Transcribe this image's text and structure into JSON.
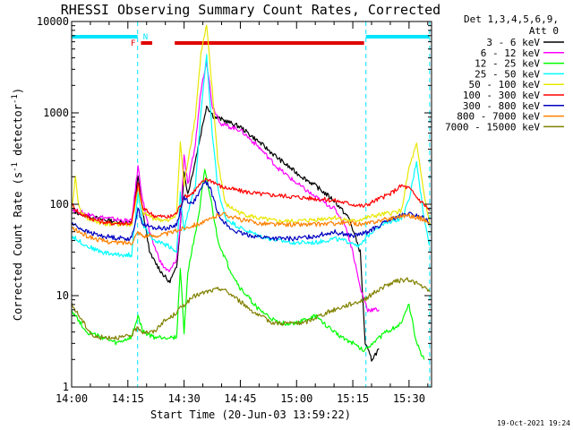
{
  "chart_data": {
    "type": "line",
    "title": "RHESSI Observing Summary Count Rates, Corrected",
    "xlabel": "Start Time (20-Jun-03 13:59:22)",
    "ylabel_parts": [
      "Corrected Count Rate (s",
      "-1",
      " detector",
      "-1",
      ")"
    ],
    "ylabel": "Corrected Count Rate (s-1 detector-1)",
    "y_scale": "log",
    "ylim": [
      1,
      10000
    ],
    "xlim_minutes": [
      0,
      96
    ],
    "x_ticks": [
      {
        "m": 0,
        "label": "14:00"
      },
      {
        "m": 15,
        "label": "14:15"
      },
      {
        "m": 30,
        "label": "14:30"
      },
      {
        "m": 45,
        "label": "14:45"
      },
      {
        "m": 60,
        "label": "15:00"
      },
      {
        "m": 75,
        "label": "15:15"
      },
      {
        "m": 90,
        "label": "15:30"
      }
    ],
    "y_ticks": [
      {
        "v": 1,
        "label": "1"
      },
      {
        "v": 10,
        "label": "10"
      },
      {
        "v": 100,
        "label": "100"
      },
      {
        "v": 1000,
        "label": "1000"
      },
      {
        "v": 10000,
        "label": "10000"
      }
    ],
    "legend_header": [
      "Det 1,3,4,5,6,9,",
      "Att 0"
    ],
    "legend_position": "right",
    "timestamp": "19-Oct-2021 19:24",
    "flags": {
      "F_label": "F",
      "N_label": "N",
      "night_color": "#00e5ff",
      "flare_color": "#e00000",
      "N_segments": [
        [
          0,
          17.6
        ],
        [
          78.5,
          95.5
        ]
      ],
      "F_segments": [
        [
          18.5,
          21.5
        ],
        [
          27.5,
          78.0
        ]
      ],
      "boundary_lines_m": [
        17.6,
        78.5,
        95.5
      ]
    },
    "series": [
      {
        "name": "3 - 6 keV",
        "color": "#000000",
        "points": [
          [
            0,
            85
          ],
          [
            4,
            75
          ],
          [
            8,
            68
          ],
          [
            12,
            65
          ],
          [
            16,
            62
          ],
          [
            17.7,
            200
          ],
          [
            19,
            80
          ],
          [
            21,
            28
          ],
          [
            24,
            18
          ],
          [
            26,
            14
          ],
          [
            28,
            20
          ],
          [
            29,
            60
          ],
          [
            30,
            220
          ],
          [
            31,
            130
          ],
          [
            33,
            300
          ],
          [
            34.5,
            600
          ],
          [
            36,
            1200
          ],
          [
            38,
            900
          ],
          [
            40,
            850
          ],
          [
            45,
            700
          ],
          [
            50,
            480
          ],
          [
            55,
            320
          ],
          [
            60,
            220
          ],
          [
            65,
            160
          ],
          [
            70,
            110
          ],
          [
            74,
            70
          ],
          [
            77,
            30
          ],
          [
            78.3,
            3
          ],
          [
            80,
            2
          ],
          [
            82,
            2.6
          ]
        ]
      },
      {
        "name": "6 - 12 keV",
        "color": "#ff00ff",
        "points": [
          [
            0,
            88
          ],
          [
            4,
            78
          ],
          [
            8,
            72
          ],
          [
            12,
            68
          ],
          [
            16,
            65
          ],
          [
            17.7,
            260
          ],
          [
            19,
            110
          ],
          [
            21,
            45
          ],
          [
            24,
            22
          ],
          [
            26,
            18
          ],
          [
            28,
            25
          ],
          [
            29,
            60
          ],
          [
            30,
            350
          ],
          [
            31,
            160
          ],
          [
            33,
            450
          ],
          [
            34.5,
            1800
          ],
          [
            36,
            3800
          ],
          [
            37.5,
            1200
          ],
          [
            40,
            750
          ],
          [
            45,
            650
          ],
          [
            50,
            420
          ],
          [
            55,
            250
          ],
          [
            60,
            170
          ],
          [
            65,
            120
          ],
          [
            70,
            90
          ],
          [
            73,
            60
          ],
          [
            75,
            30
          ],
          [
            77,
            12
          ],
          [
            79,
            7
          ],
          [
            80,
            7
          ],
          [
            82,
            7
          ]
        ]
      },
      {
        "name": "12 - 25 keV",
        "color": "#00ff00",
        "points": [
          [
            0,
            7
          ],
          [
            4,
            4
          ],
          [
            8,
            3.5
          ],
          [
            12,
            3
          ],
          [
            16,
            3.5
          ],
          [
            17.7,
            6
          ],
          [
            19,
            4
          ],
          [
            22,
            3.5
          ],
          [
            25,
            3.5
          ],
          [
            28,
            3.5
          ],
          [
            29,
            20
          ],
          [
            30,
            4
          ],
          [
            31,
            18
          ],
          [
            32,
            30
          ],
          [
            34,
            80
          ],
          [
            35.5,
            230
          ],
          [
            37,
            120
          ],
          [
            39,
            40
          ],
          [
            42,
            20
          ],
          [
            45,
            12
          ],
          [
            50,
            7
          ],
          [
            55,
            5
          ],
          [
            60,
            5
          ],
          [
            65,
            6
          ],
          [
            70,
            4
          ],
          [
            75,
            3
          ],
          [
            78,
            2.5
          ],
          [
            80,
            3
          ],
          [
            84,
            4
          ],
          [
            88,
            5
          ],
          [
            90,
            8
          ],
          [
            92,
            3
          ],
          [
            94,
            2
          ]
        ]
      },
      {
        "name": "25 - 50 keV",
        "color": "#00ffff",
        "points": [
          [
            0,
            45
          ],
          [
            4,
            35
          ],
          [
            8,
            30
          ],
          [
            12,
            28
          ],
          [
            16,
            28
          ],
          [
            17.7,
            130
          ],
          [
            19,
            60
          ],
          [
            22,
            40
          ],
          [
            26,
            35
          ],
          [
            28,
            30
          ],
          [
            29,
            130
          ],
          [
            30,
            50
          ],
          [
            31,
            80
          ],
          [
            33,
            160
          ],
          [
            34.5,
            1000
          ],
          [
            36,
            4200
          ],
          [
            37.5,
            600
          ],
          [
            39,
            150
          ],
          [
            41,
            70
          ],
          [
            45,
            55
          ],
          [
            50,
            45
          ],
          [
            55,
            40
          ],
          [
            60,
            38
          ],
          [
            65,
            38
          ],
          [
            70,
            42
          ],
          [
            75,
            38
          ],
          [
            77,
            35
          ],
          [
            79,
            45
          ],
          [
            81,
            55
          ],
          [
            85,
            65
          ],
          [
            88,
            70
          ],
          [
            90,
            110
          ],
          [
            92,
            300
          ],
          [
            94,
            70
          ],
          [
            95.5,
            35
          ]
        ]
      },
      {
        "name": "50 - 100 keV",
        "color": "#e8e800",
        "points": [
          [
            0,
            80
          ],
          [
            1,
            200
          ],
          [
            2,
            90
          ],
          [
            4,
            70
          ],
          [
            8,
            62
          ],
          [
            12,
            60
          ],
          [
            16,
            60
          ],
          [
            17.7,
            150
          ],
          [
            19,
            80
          ],
          [
            22,
            70
          ],
          [
            26,
            65
          ],
          [
            28,
            80
          ],
          [
            29,
            480
          ],
          [
            30,
            160
          ],
          [
            31,
            300
          ],
          [
            33,
            900
          ],
          [
            34.5,
            4500
          ],
          [
            36,
            9000
          ],
          [
            37.5,
            1800
          ],
          [
            39,
            300
          ],
          [
            41,
            100
          ],
          [
            45,
            80
          ],
          [
            50,
            70
          ],
          [
            55,
            65
          ],
          [
            60,
            65
          ],
          [
            65,
            68
          ],
          [
            70,
            72
          ],
          [
            75,
            65
          ],
          [
            78,
            70
          ],
          [
            81,
            75
          ],
          [
            85,
            80
          ],
          [
            88,
            85
          ],
          [
            90,
            250
          ],
          [
            92,
            450
          ],
          [
            94,
            130
          ],
          [
            95.5,
            60
          ]
        ]
      },
      {
        "name": "100 - 300 keV",
        "color": "#ff0000",
        "points": [
          [
            0,
            100
          ],
          [
            2,
            80
          ],
          [
            6,
            68
          ],
          [
            10,
            62
          ],
          [
            14,
            62
          ],
          [
            16,
            62
          ],
          [
            17.7,
            170
          ],
          [
            19,
            90
          ],
          [
            22,
            75
          ],
          [
            26,
            72
          ],
          [
            28,
            80
          ],
          [
            30,
            120
          ],
          [
            32,
            130
          ],
          [
            34,
            160
          ],
          [
            36,
            190
          ],
          [
            38,
            175
          ],
          [
            40,
            155
          ],
          [
            45,
            140
          ],
          [
            50,
            130
          ],
          [
            55,
            125
          ],
          [
            60,
            120
          ],
          [
            65,
            115
          ],
          [
            70,
            110
          ],
          [
            75,
            100
          ],
          [
            78,
            95
          ],
          [
            81,
            110
          ],
          [
            85,
            130
          ],
          [
            88,
            160
          ],
          [
            90,
            150
          ],
          [
            92,
            120
          ],
          [
            94,
            100
          ],
          [
            95.5,
            85
          ]
        ]
      },
      {
        "name": "300 - 800 keV",
        "color": "#0000c0",
        "points": [
          [
            0,
            62
          ],
          [
            4,
            50
          ],
          [
            8,
            45
          ],
          [
            12,
            43
          ],
          [
            16,
            42
          ],
          [
            17.7,
            90
          ],
          [
            19,
            60
          ],
          [
            22,
            55
          ],
          [
            26,
            55
          ],
          [
            28,
            60
          ],
          [
            30,
            120
          ],
          [
            32,
            100
          ],
          [
            34,
            130
          ],
          [
            35.5,
            180
          ],
          [
            37,
            150
          ],
          [
            39,
            80
          ],
          [
            42,
            55
          ],
          [
            45,
            48
          ],
          [
            50,
            44
          ],
          [
            55,
            42
          ],
          [
            60,
            42
          ],
          [
            65,
            45
          ],
          [
            70,
            50
          ],
          [
            75,
            45
          ],
          [
            78,
            48
          ],
          [
            81,
            55
          ],
          [
            85,
            68
          ],
          [
            88,
            75
          ],
          [
            90,
            78
          ],
          [
            92,
            75
          ],
          [
            94,
            70
          ],
          [
            95.5,
            62
          ]
        ]
      },
      {
        "name": "800 - 7000 keV",
        "color": "#ff8000",
        "points": [
          [
            0,
            55
          ],
          [
            4,
            45
          ],
          [
            8,
            40
          ],
          [
            12,
            38
          ],
          [
            16,
            38
          ],
          [
            17.7,
            50
          ],
          [
            19,
            45
          ],
          [
            22,
            45
          ],
          [
            26,
            48
          ],
          [
            30,
            55
          ],
          [
            33,
            60
          ],
          [
            36,
            65
          ],
          [
            40,
            80
          ],
          [
            45,
            68
          ],
          [
            50,
            62
          ],
          [
            55,
            60
          ],
          [
            60,
            60
          ],
          [
            65,
            60
          ],
          [
            70,
            62
          ],
          [
            75,
            62
          ],
          [
            78,
            60
          ],
          [
            81,
            65
          ],
          [
            85,
            70
          ],
          [
            88,
            75
          ],
          [
            90,
            75
          ],
          [
            92,
            72
          ],
          [
            94,
            68
          ],
          [
            95.5,
            62
          ]
        ]
      },
      {
        "name": "7000 - 15000 keV",
        "color": "#808000",
        "points": [
          [
            0,
            8
          ],
          [
            2,
            6
          ],
          [
            4,
            4.5
          ],
          [
            6,
            3.5
          ],
          [
            10,
            3.5
          ],
          [
            14,
            3.5
          ],
          [
            16,
            3.7
          ],
          [
            17.7,
            4.5
          ],
          [
            19,
            4
          ],
          [
            22,
            4
          ],
          [
            24,
            5
          ],
          [
            27,
            6
          ],
          [
            30,
            8
          ],
          [
            33,
            10
          ],
          [
            36,
            11
          ],
          [
            40,
            12
          ],
          [
            43,
            10
          ],
          [
            46,
            8
          ],
          [
            50,
            6
          ],
          [
            54,
            5
          ],
          [
            58,
            5
          ],
          [
            62,
            5
          ],
          [
            66,
            6
          ],
          [
            70,
            7
          ],
          [
            74,
            8
          ],
          [
            78,
            9
          ],
          [
            81,
            11
          ],
          [
            84,
            13
          ],
          [
            87,
            14.5
          ],
          [
            90,
            15
          ],
          [
            93,
            13
          ],
          [
            95.5,
            11
          ]
        ]
      }
    ]
  }
}
